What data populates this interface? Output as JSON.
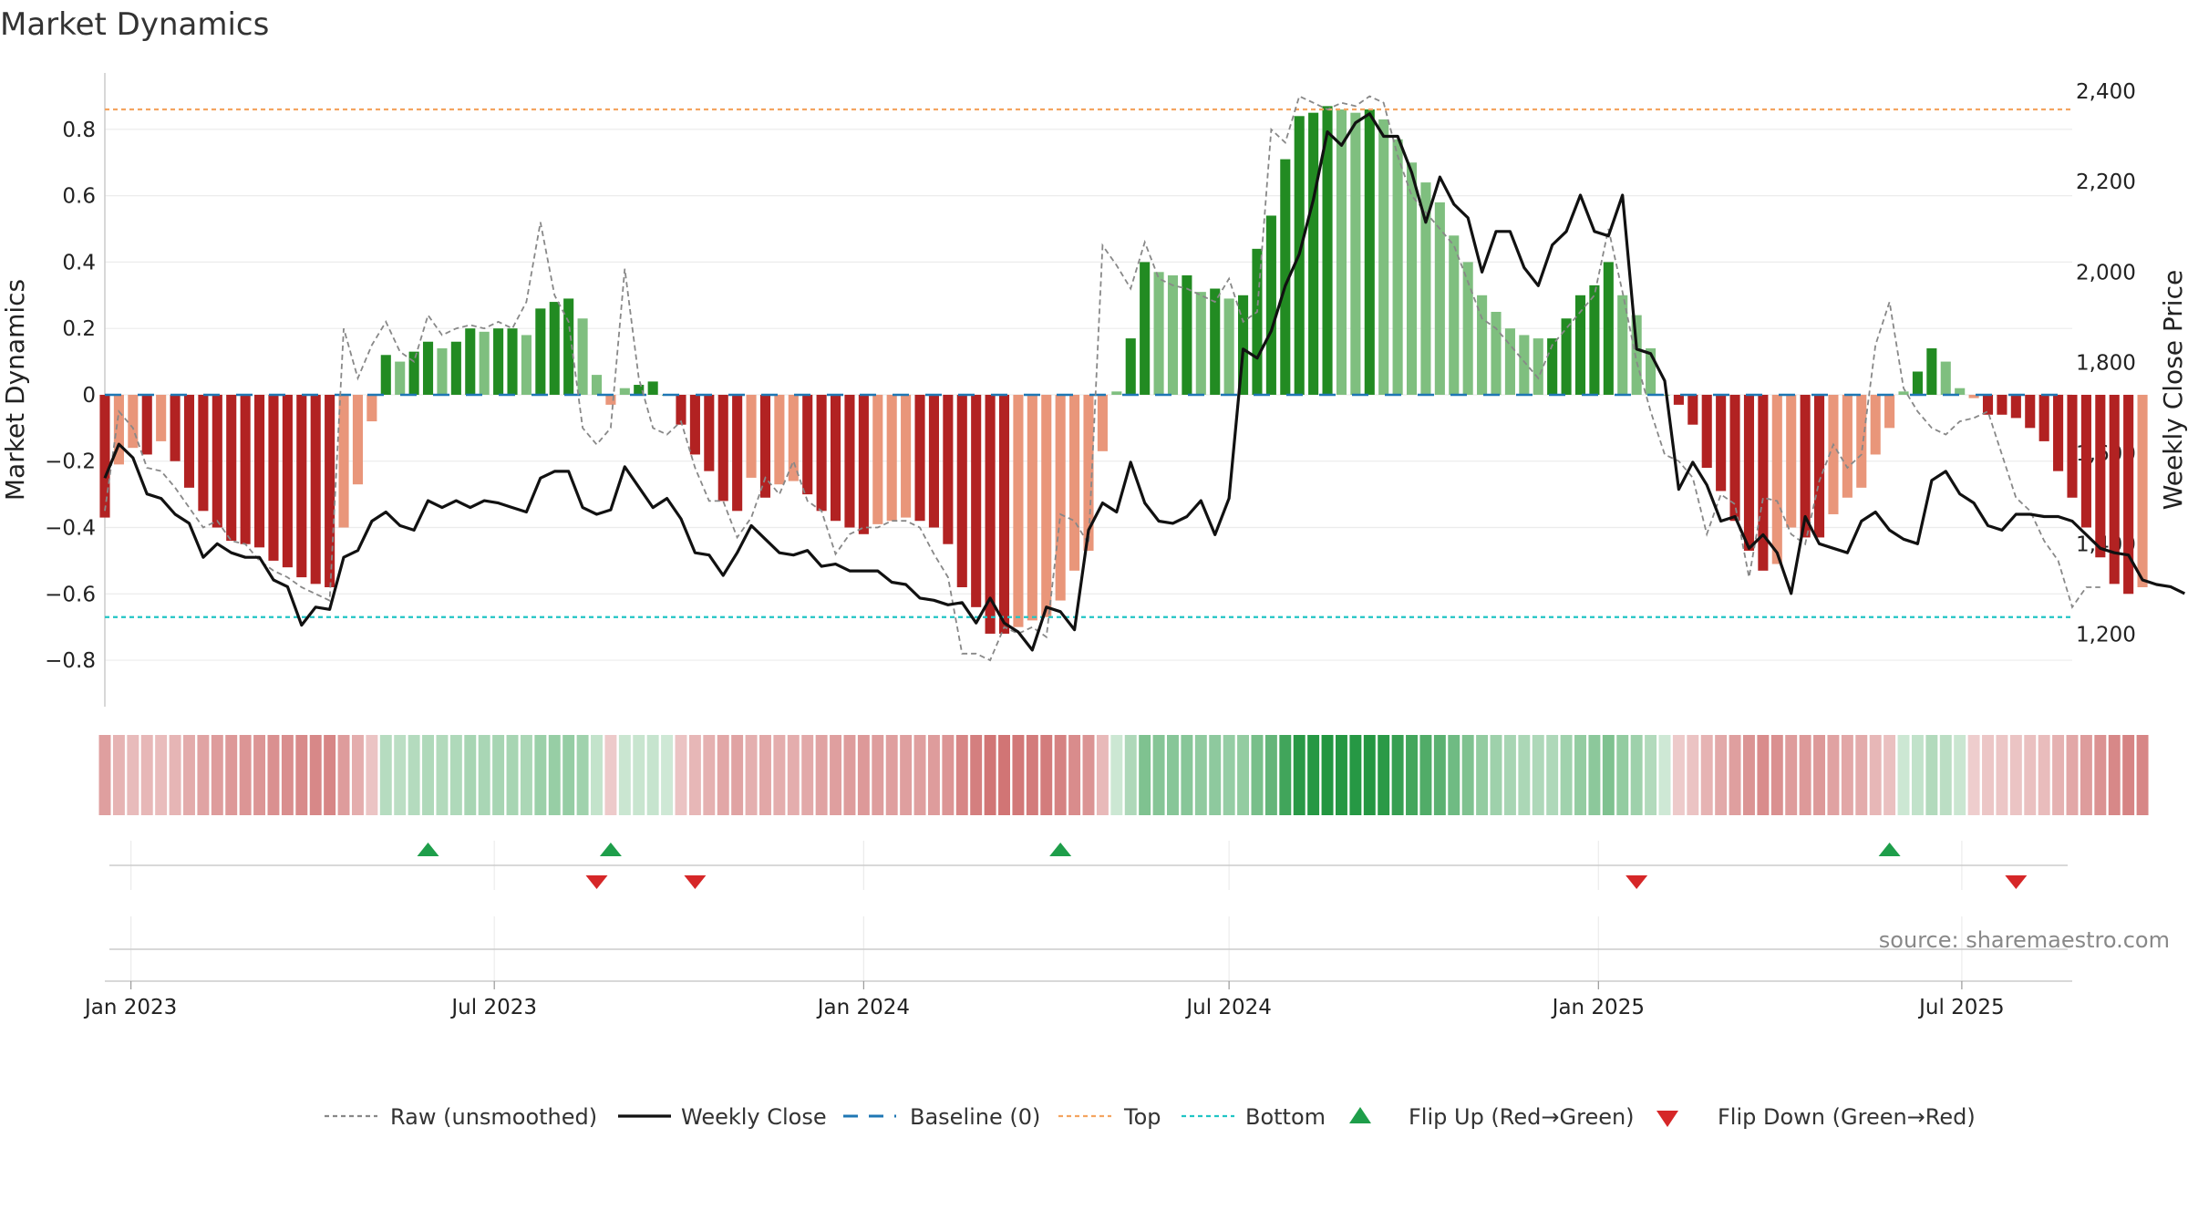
{
  "title": "Market Dynamics",
  "source": "source: sharemaestro.com",
  "chart_data": {
    "type": "bar",
    "title": "Market Dynamics",
    "ylabel": "Market Dynamics",
    "y2label": "Weekly Close Price",
    "ylim": [
      -0.94,
      0.97
    ],
    "y2lim": [
      1040,
      2440
    ],
    "yticks": [
      -0.8,
      -0.6,
      -0.4,
      -0.2,
      0,
      0.2,
      0.4,
      0.6,
      0.8
    ],
    "ytick_labels": [
      "−0.8",
      "−0.6",
      "−0.4",
      "−0.2",
      "0",
      "0.2",
      "0.4",
      "0.6",
      "0.8"
    ],
    "y2ticks": [
      1200,
      1400,
      1600,
      1800,
      2000,
      2200,
      2400
    ],
    "y2tick_labels": [
      "1,200",
      "1,400",
      "1,600",
      "1,800",
      "2,000",
      "2,200",
      "2,400"
    ],
    "xlim": [
      "2022-12-19",
      "2025-08-25"
    ],
    "xticks": [
      "2023-01-01",
      "2023-07-01",
      "2024-01-01",
      "2024-07-01",
      "2025-01-01",
      "2025-07-01"
    ],
    "xtick_labels": [
      "Jan 2023",
      "Jul 2023",
      "Jan 2024",
      "Jul 2024",
      "Jan 2025",
      "Jul 2025"
    ],
    "grid": true,
    "legend_position": "bottom",
    "start_date": "2022-12-19",
    "week_step_days": 7,
    "top_line": 0.86,
    "bottom_line": -0.67,
    "baseline": 0,
    "colors": {
      "strong_red": "#b22222",
      "light_red": "#e9967a",
      "strong_green": "#228b22",
      "light_green": "#7fbf7f",
      "close": "#111111",
      "raw": "#888888",
      "baseline": "#1f77b4",
      "top": "#f4a460",
      "bottom": "#20c5c5",
      "flip_up": "#1e9e4a",
      "flip_down": "#d62728"
    },
    "series": [
      {
        "name": "Market Dynamics",
        "values": [
          -0.37,
          -0.21,
          -0.16,
          -0.18,
          -0.14,
          -0.2,
          -0.28,
          -0.35,
          -0.4,
          -0.44,
          -0.45,
          -0.46,
          -0.5,
          -0.52,
          -0.55,
          -0.57,
          -0.58,
          -0.4,
          -0.27,
          -0.08,
          0.12,
          0.1,
          0.13,
          0.16,
          0.14,
          0.16,
          0.2,
          0.19,
          0.2,
          0.2,
          0.18,
          0.26,
          0.28,
          0.29,
          0.23,
          0.06,
          -0.03,
          0.02,
          0.03,
          0.04,
          0.0,
          -0.09,
          -0.18,
          -0.23,
          -0.32,
          -0.35,
          -0.25,
          -0.31,
          -0.27,
          -0.26,
          -0.3,
          -0.35,
          -0.38,
          -0.4,
          -0.42,
          -0.39,
          -0.38,
          -0.37,
          -0.38,
          -0.4,
          -0.45,
          -0.58,
          -0.64,
          -0.72,
          -0.72,
          -0.7,
          -0.68,
          -0.67,
          -0.62,
          -0.53,
          -0.47,
          -0.17,
          0.01,
          0.17,
          0.4,
          0.37,
          0.36,
          0.36,
          0.31,
          0.32,
          0.29,
          0.3,
          0.44,
          0.54,
          0.71,
          0.84,
          0.85,
          0.87,
          0.86,
          0.85,
          0.86,
          0.83,
          0.77,
          0.7,
          0.64,
          0.58,
          0.48,
          0.4,
          0.3,
          0.25,
          0.2,
          0.18,
          0.17,
          0.17,
          0.23,
          0.3,
          0.33,
          0.4,
          0.3,
          0.24,
          0.14,
          0.0,
          -0.03,
          -0.09,
          -0.22,
          -0.29,
          -0.38,
          -0.47,
          -0.53,
          -0.51,
          -0.4,
          -0.43,
          -0.43,
          -0.36,
          -0.31,
          -0.28,
          -0.18,
          -0.1,
          0.01,
          0.07,
          0.14,
          0.1,
          0.02,
          -0.01,
          -0.06,
          -0.06,
          -0.07,
          -0.1,
          -0.14,
          -0.23,
          -0.31,
          -0.4,
          -0.49,
          -0.57,
          -0.6,
          -0.58
        ]
      },
      {
        "name": "Raw (unsmoothed)",
        "values": [
          -0.35,
          -0.05,
          -0.1,
          -0.22,
          -0.23,
          -0.28,
          -0.34,
          -0.4,
          -0.38,
          -0.44,
          -0.45,
          -0.5,
          -0.53,
          -0.55,
          -0.58,
          -0.6,
          -0.62,
          0.2,
          0.05,
          0.15,
          0.22,
          0.13,
          0.1,
          0.24,
          0.18,
          0.2,
          0.21,
          0.2,
          0.22,
          0.2,
          0.28,
          0.52,
          0.3,
          0.22,
          -0.1,
          -0.15,
          -0.1,
          0.38,
          0.05,
          -0.1,
          -0.12,
          -0.08,
          -0.22,
          -0.32,
          -0.32,
          -0.43,
          -0.37,
          -0.25,
          -0.3,
          -0.2,
          -0.32,
          -0.35,
          -0.48,
          -0.42,
          -0.4,
          -0.4,
          -0.38,
          -0.38,
          -0.4,
          -0.48,
          -0.55,
          -0.78,
          -0.78,
          -0.8,
          -0.7,
          -0.72,
          -0.7,
          -0.73,
          -0.36,
          -0.38,
          -0.45,
          0.45,
          0.39,
          0.32,
          0.46,
          0.35,
          0.33,
          0.32,
          0.3,
          0.28,
          0.35,
          0.22,
          0.25,
          0.8,
          0.76,
          0.9,
          0.88,
          0.86,
          0.88,
          0.87,
          0.9,
          0.88,
          0.72,
          0.6,
          0.55,
          0.5,
          0.45,
          0.34,
          0.23,
          0.2,
          0.15,
          0.1,
          0.05,
          0.15,
          0.2,
          0.25,
          0.3,
          0.5,
          0.31,
          0.1,
          -0.05,
          -0.18,
          -0.2,
          -0.25,
          -0.42,
          -0.3,
          -0.33,
          -0.55,
          -0.31,
          -0.32,
          -0.42,
          -0.45,
          -0.26,
          -0.15,
          -0.22,
          -0.18,
          0.15,
          0.28,
          0.02,
          -0.05,
          -0.1,
          -0.12,
          -0.08,
          -0.07,
          -0.05,
          -0.18,
          -0.31,
          -0.35,
          -0.44,
          -0.5,
          -0.64,
          -0.58,
          -0.58
        ]
      },
      {
        "name": "Weekly Close",
        "values": [
          1545,
          1620,
          1590,
          1510,
          1500,
          1465,
          1445,
          1370,
          1400,
          1380,
          1370,
          1370,
          1320,
          1305,
          1220,
          1260,
          1255,
          1370,
          1385,
          1450,
          1470,
          1440,
          1430,
          1495,
          1480,
          1495,
          1480,
          1495,
          1490,
          1480,
          1470,
          1545,
          1560,
          1560,
          1480,
          1465,
          1475,
          1570,
          1525,
          1480,
          1500,
          1455,
          1380,
          1375,
          1330,
          1380,
          1440,
          1410,
          1380,
          1375,
          1385,
          1350,
          1355,
          1340,
          1340,
          1340,
          1315,
          1310,
          1280,
          1275,
          1265,
          1270,
          1225,
          1280,
          1225,
          1205,
          1165,
          1260,
          1250,
          1210,
          1430,
          1490,
          1470,
          1580,
          1490,
          1450,
          1445,
          1460,
          1495,
          1420,
          1500,
          1830,
          1810,
          1870,
          1970,
          2040,
          2160,
          2310,
          2280,
          2330,
          2350,
          2300,
          2300,
          2220,
          2110,
          2210,
          2150,
          2120,
          2000,
          2090,
          2090,
          2010,
          1970,
          2060,
          2090,
          2170,
          2090,
          2080,
          2170,
          1830,
          1820,
          1760,
          1520,
          1580,
          1530,
          1450,
          1460,
          1390,
          1420,
          1380,
          1290,
          1460,
          1400,
          1390,
          1380,
          1450,
          1470,
          1430,
          1410,
          1400,
          1540,
          1560,
          1510,
          1490,
          1440,
          1430,
          1465,
          1465,
          1460,
          1460,
          1450,
          1420,
          1390,
          1380,
          1375,
          1320,
          1310,
          1305,
          1290
        ]
      }
    ],
    "trend_strip": [
      -0.37,
      -0.21,
      -0.16,
      -0.18,
      -0.14,
      -0.2,
      -0.28,
      -0.35,
      -0.4,
      -0.44,
      -0.45,
      -0.46,
      -0.5,
      -0.52,
      -0.55,
      -0.57,
      -0.58,
      -0.4,
      -0.27,
      -0.08,
      0.12,
      0.1,
      0.13,
      0.16,
      0.14,
      0.16,
      0.2,
      0.19,
      0.2,
      0.2,
      0.18,
      0.26,
      0.28,
      0.29,
      0.23,
      0.06,
      -0.03,
      0.02,
      0.03,
      0.04,
      0.0,
      -0.09,
      -0.18,
      -0.23,
      -0.32,
      -0.35,
      -0.25,
      -0.31,
      -0.27,
      -0.26,
      -0.3,
      -0.35,
      -0.38,
      -0.4,
      -0.42,
      -0.39,
      -0.38,
      -0.37,
      -0.38,
      -0.4,
      -0.45,
      -0.58,
      -0.64,
      -0.72,
      -0.72,
      -0.7,
      -0.68,
      -0.67,
      -0.62,
      -0.53,
      -0.47,
      -0.17,
      0.01,
      0.17,
      0.4,
      0.37,
      0.36,
      0.36,
      0.31,
      0.32,
      0.29,
      0.3,
      0.44,
      0.54,
      0.71,
      0.84,
      0.85,
      0.87,
      0.86,
      0.85,
      0.86,
      0.83,
      0.77,
      0.7,
      0.64,
      0.58,
      0.48,
      0.4,
      0.3,
      0.25,
      0.2,
      0.18,
      0.17,
      0.17,
      0.23,
      0.3,
      0.33,
      0.4,
      0.3,
      0.24,
      0.14,
      0.0,
      -0.03,
      -0.09,
      -0.22,
      -0.29,
      -0.38,
      -0.47,
      -0.53,
      -0.51,
      -0.4,
      -0.43,
      -0.43,
      -0.36,
      -0.31,
      -0.28,
      -0.18,
      -0.1,
      0.01,
      0.07,
      0.14,
      0.1,
      0.02,
      -0.01,
      -0.06,
      -0.06,
      -0.07,
      -0.1,
      -0.14,
      -0.23,
      -0.31,
      -0.4,
      -0.49,
      -0.57,
      -0.6,
      -0.58
    ],
    "flip_up_dates": [
      "2023-05-29",
      "2023-08-28",
      "2024-04-08",
      "2025-05-26"
    ],
    "flip_down_dates": [
      "2023-08-21",
      "2023-10-09",
      "2025-01-20",
      "2025-07-28"
    ],
    "legend": [
      {
        "label": "Raw (unsmoothed)",
        "style": "dotted",
        "color": "#888888"
      },
      {
        "label": "Weekly Close",
        "style": "solid",
        "color": "#111111"
      },
      {
        "label": "Baseline (0)",
        "style": "dashed",
        "color": "#1f77b4"
      },
      {
        "label": "Top",
        "style": "dotted",
        "color": "#f4a460"
      },
      {
        "label": "Bottom",
        "style": "dotted",
        "color": "#20c5c5"
      },
      {
        "label": "Flip Up (Red→Green)",
        "style": "tri-up",
        "color": "#1e9e4a"
      },
      {
        "label": "Flip Down (Green→Red)",
        "style": "tri-down",
        "color": "#d62728"
      }
    ]
  }
}
